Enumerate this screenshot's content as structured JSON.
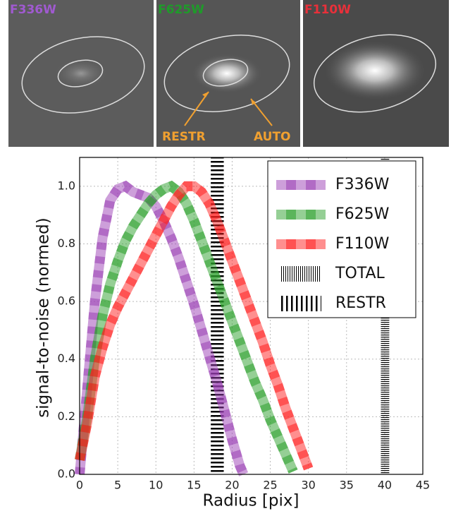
{
  "panels": [
    {
      "label": "F336W",
      "color": "#a05ad0"
    },
    {
      "label": "F625W",
      "color": "#1f9a2a"
    },
    {
      "label": "F110W",
      "color": "#e8303a"
    }
  ],
  "annotations": [
    {
      "text": "RESTR"
    },
    {
      "text": "AUTO"
    }
  ],
  "chart_data": {
    "type": "line",
    "x_label": "Radius [pix]",
    "y_label": "signal-to-noise (normed)",
    "xlim": [
      0,
      45
    ],
    "ylim": [
      0,
      1.1
    ],
    "xticks": [
      0,
      5,
      10,
      15,
      20,
      25,
      30,
      35,
      40,
      45
    ],
    "yticks": [
      {
        "value": 0,
        "label": "0.0"
      },
      0.2,
      0.4,
      0.6,
      0.8,
      {
        "value": 1,
        "label": "1.0"
      }
    ],
    "grid": true,
    "series": [
      {
        "name": "F336W",
        "color": "#9b3fb5",
        "x": [
          0,
          1,
          2,
          3,
          4,
          5,
          6,
          7,
          8,
          9,
          10,
          11,
          12,
          13,
          14,
          15,
          16,
          17,
          18,
          19,
          20,
          21,
          21.5
        ],
        "values": [
          0,
          0.3,
          0.6,
          0.82,
          0.95,
          0.99,
          1.0,
          0.98,
          0.97,
          0.96,
          0.93,
          0.88,
          0.82,
          0.75,
          0.67,
          0.59,
          0.5,
          0.41,
          0.32,
          0.22,
          0.12,
          0.03,
          0
        ]
      },
      {
        "name": "F625W",
        "color": "#2ca02c",
        "x": [
          0,
          1,
          2,
          3,
          4,
          5,
          6,
          7,
          8,
          9,
          10,
          11,
          12,
          13,
          14,
          15,
          16,
          17,
          18,
          19,
          20,
          21,
          22,
          23,
          24,
          25,
          26,
          27,
          28
        ],
        "values": [
          0.05,
          0.2,
          0.4,
          0.55,
          0.66,
          0.74,
          0.81,
          0.86,
          0.9,
          0.94,
          0.97,
          0.99,
          1.0,
          0.98,
          0.94,
          0.88,
          0.81,
          0.74,
          0.67,
          0.6,
          0.53,
          0.46,
          0.39,
          0.32,
          0.26,
          0.19,
          0.13,
          0.07,
          0.01
        ]
      },
      {
        "name": "F110W",
        "color": "#ff2020",
        "x": [
          0,
          1,
          2,
          3,
          4,
          5,
          6,
          7,
          8,
          9,
          10,
          11,
          12,
          13,
          14,
          15,
          16,
          17,
          18,
          19,
          20,
          21,
          22,
          23,
          24,
          25,
          26,
          27,
          28,
          29,
          30
        ],
        "values": [
          0.05,
          0.18,
          0.34,
          0.44,
          0.52,
          0.58,
          0.63,
          0.68,
          0.73,
          0.78,
          0.83,
          0.88,
          0.93,
          0.97,
          1.0,
          1.0,
          0.98,
          0.94,
          0.88,
          0.81,
          0.74,
          0.67,
          0.6,
          0.53,
          0.46,
          0.38,
          0.31,
          0.23,
          0.16,
          0.09,
          0.02
        ]
      }
    ],
    "apertures": [
      {
        "name": "TOTAL",
        "x": [
          39.5,
          40.6
        ]
      },
      {
        "name": "RESTR",
        "x": [
          17.2,
          18.9
        ]
      }
    ]
  }
}
